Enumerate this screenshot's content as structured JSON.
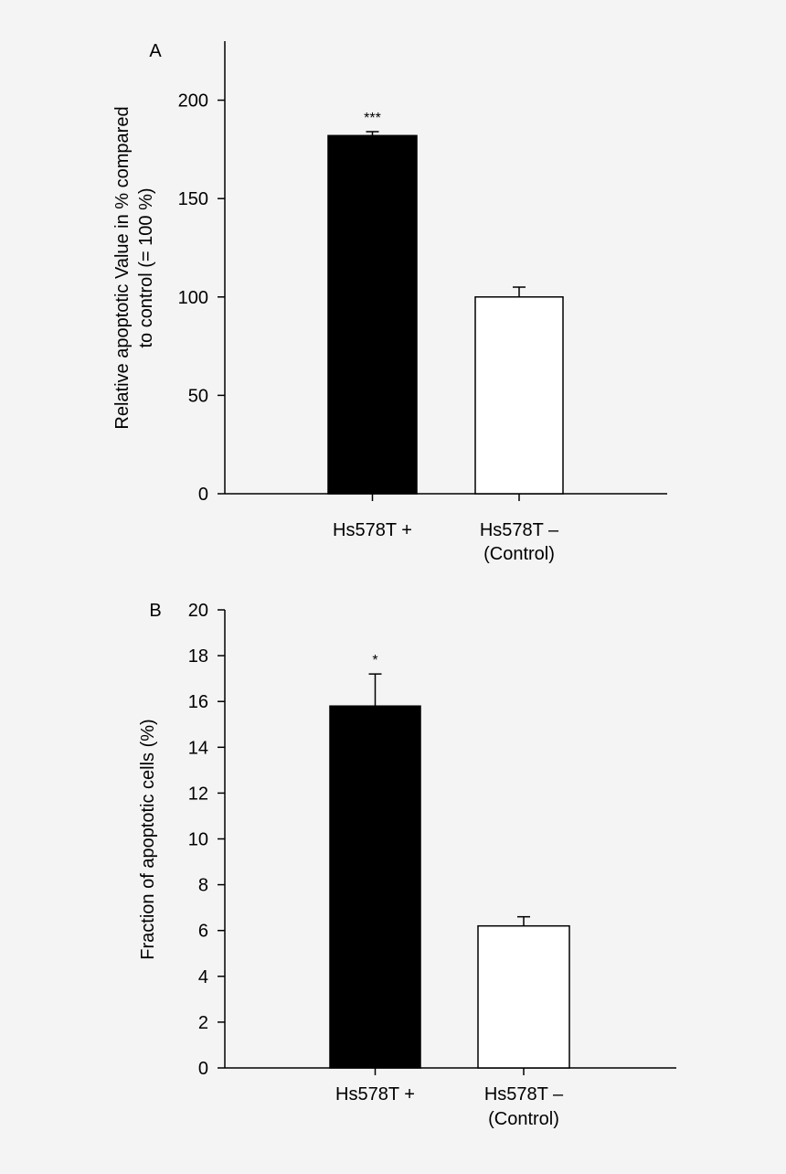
{
  "colors": {
    "background": "#f4f4f4",
    "treated_bar": "#000000",
    "control_bar": "#ffffff",
    "axis": "#000000"
  },
  "chart_data": [
    {
      "panel_label": "A",
      "type": "bar",
      "ylabel_lines": [
        "Relative apoptotic Value in % compared",
        "to control (= 100 %)"
      ],
      "ylim": [
        0,
        230
      ],
      "yticks": [
        0,
        50,
        100,
        150,
        200
      ],
      "bars": [
        {
          "label_lines": [
            "Hs578T +"
          ],
          "value": 182,
          "error": 2,
          "fill": "black",
          "significance": "***"
        },
        {
          "label_lines": [
            "Hs578T –",
            "(Control)"
          ],
          "value": 100,
          "error": 5,
          "fill": "white",
          "significance": ""
        }
      ],
      "grid": false,
      "legend": "none"
    },
    {
      "panel_label": "B",
      "type": "bar",
      "ylabel_lines": [
        "Fraction of apoptotic cells (%)"
      ],
      "ylim": [
        0,
        20
      ],
      "yticks": [
        0,
        2,
        4,
        6,
        8,
        10,
        12,
        14,
        16,
        18,
        20
      ],
      "bars": [
        {
          "label_lines": [
            "Hs578T +"
          ],
          "value": 15.8,
          "error": 1.4,
          "fill": "black",
          "significance": "*"
        },
        {
          "label_lines": [
            "Hs578T –",
            "(Control)"
          ],
          "value": 6.2,
          "error": 0.4,
          "fill": "white",
          "significance": ""
        }
      ],
      "grid": false,
      "legend": "none"
    }
  ]
}
